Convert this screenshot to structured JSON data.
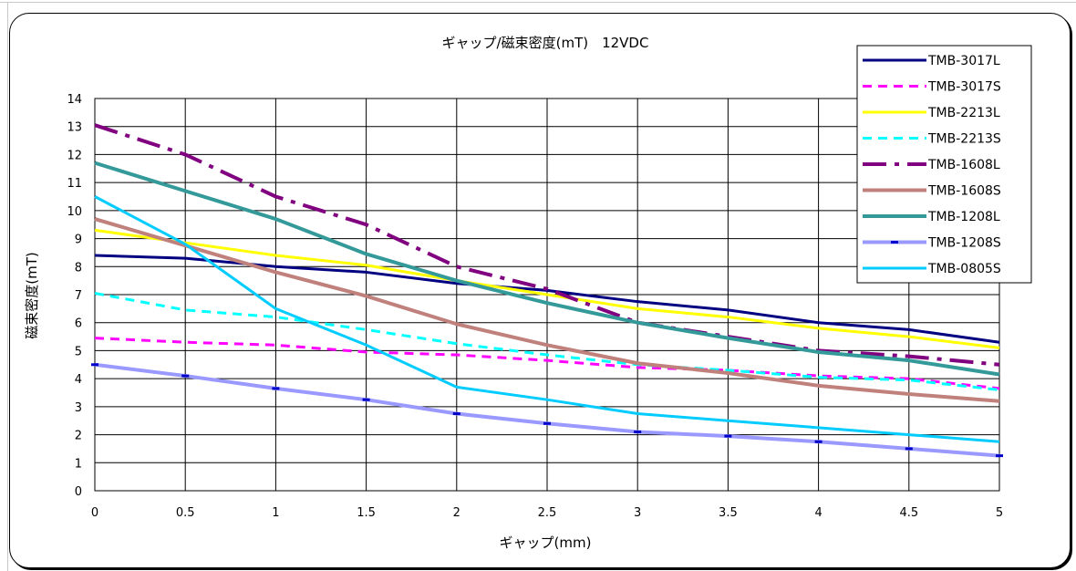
{
  "chart_data": {
    "type": "line",
    "title": "ギャップ/磁束密度(mT)　12VDC",
    "xlabel": "ギャップ(mm)",
    "ylabel": "磁束密度(mT)",
    "xlim": [
      0,
      5
    ],
    "ylim": [
      0,
      14
    ],
    "x_ticks": [
      "0",
      "0.5",
      "1",
      "1.5",
      "2",
      "2.5",
      "3",
      "3.5",
      "4",
      "4.5",
      "5"
    ],
    "y_ticks": [
      "0",
      "1",
      "2",
      "3",
      "4",
      "5",
      "6",
      "7",
      "8",
      "9",
      "10",
      "11",
      "12",
      "13",
      "14"
    ],
    "grid": true,
    "legend_position": "top-right",
    "x": [
      0,
      0.5,
      1,
      1.5,
      2,
      2.5,
      3,
      3.5,
      4,
      4.5,
      5
    ],
    "series": [
      {
        "name": "TMB-3017L",
        "color": "#000080",
        "style": "solid",
        "values": [
          8.4,
          8.3,
          8.0,
          7.8,
          7.4,
          7.15,
          6.75,
          6.45,
          6.0,
          5.75,
          5.3
        ]
      },
      {
        "name": "TMB-3017S",
        "color": "#ff00ff",
        "style": "dash",
        "values": [
          5.45,
          5.3,
          5.2,
          4.95,
          4.85,
          4.65,
          4.4,
          4.3,
          4.1,
          4.0,
          3.65
        ]
      },
      {
        "name": "TMB-2213L",
        "color": "#ffff00",
        "style": "solid",
        "values": [
          9.3,
          8.85,
          8.4,
          8.05,
          7.5,
          7.0,
          6.5,
          6.2,
          5.8,
          5.5,
          5.1
        ]
      },
      {
        "name": "TMB-2213S",
        "color": "#00ffff",
        "style": "dash",
        "values": [
          7.05,
          6.45,
          6.2,
          5.75,
          5.25,
          4.85,
          4.5,
          4.3,
          4.05,
          3.95,
          3.6
        ]
      },
      {
        "name": "TMB-1608L",
        "color": "#800080",
        "style": "dashdot",
        "values": [
          13.05,
          12.0,
          10.5,
          9.5,
          8.0,
          7.2,
          6.0,
          5.5,
          5.0,
          4.8,
          4.5
        ]
      },
      {
        "name": "TMB-1608S",
        "color": "#c0807c",
        "style": "solid",
        "values": [
          9.7,
          8.75,
          7.8,
          6.95,
          5.95,
          5.2,
          4.55,
          4.2,
          3.75,
          3.45,
          3.2
        ]
      },
      {
        "name": "TMB-1208L",
        "color": "#339999",
        "style": "solid",
        "values": [
          11.7,
          10.7,
          9.7,
          8.45,
          7.5,
          6.7,
          6.0,
          5.45,
          4.95,
          4.65,
          4.15
        ]
      },
      {
        "name": "TMB-1208S",
        "color": "#9999ff",
        "style": "marked",
        "values": [
          4.5,
          4.1,
          3.65,
          3.25,
          2.75,
          2.4,
          2.1,
          1.95,
          1.75,
          1.5,
          1.25
        ]
      },
      {
        "name": "TMB-0805S",
        "color": "#00ccff",
        "style": "solid",
        "values": [
          10.5,
          8.8,
          6.5,
          5.2,
          3.7,
          3.25,
          2.75,
          2.5,
          2.25,
          2.0,
          1.75
        ]
      }
    ]
  }
}
